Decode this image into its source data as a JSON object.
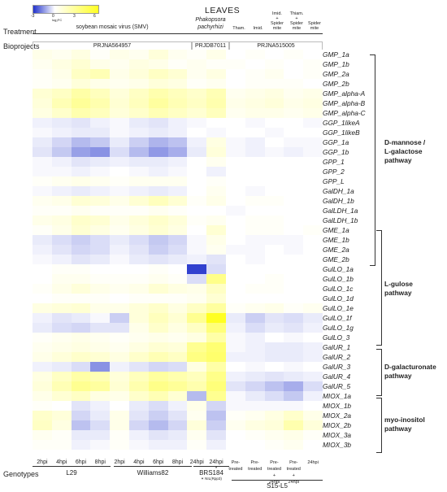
{
  "title": "LEAVES",
  "colorbar": {
    "ticks": [
      "-3",
      "0",
      "3",
      "6"
    ],
    "unit": "log₂FC",
    "colors": {
      "low": "#2233cc",
      "mid": "#ffffff",
      "high": "#ffff22"
    }
  },
  "labels": {
    "treatment": "Treatment",
    "bioprojects": "Bioprojects",
    "genotypes": "Genotypes"
  },
  "treatments": {
    "smv": "soybean mosaic virus (SMV)",
    "pak_line1": "Phakopsora",
    "pak_line2": "pachyrhizi",
    "tham": "Tham.",
    "imid": "Imid.",
    "imid_sm": [
      "Imid.",
      "+",
      "Spider",
      "mite"
    ],
    "tham_sm": [
      "Thiam.",
      "+",
      "Spider",
      "mite"
    ],
    "sm": [
      "Spider",
      "mite"
    ]
  },
  "bioprojects": [
    "PRJNA564957",
    "PRJDB7011",
    "PRJNA515005"
  ],
  "genes": [
    "GMP_1a",
    "GMP_1b",
    "GMP_2a",
    "GMP_2b",
    "GMP_alpha-A",
    "GMP_alpha-B",
    "GMP_alpha-C",
    "GGP_1likeA",
    "GGP_1likeB",
    "GGP_1a",
    "GGP_1b",
    "GPP_1",
    "GPP_2",
    "GPP_L",
    "GalDH_1a",
    "GalDH_1b",
    "GalLDH_1a",
    "GalLDH_1b",
    "GME_1a",
    "GME_1b",
    "GME_2a",
    "GME_2b",
    "GulLO_1a",
    "GulLO_1b",
    "GulLO_1c",
    "GulLO_1d",
    "GulLO_1e",
    "GulLO_1f",
    "GulLO_1g",
    "GulLO_3",
    "GalUR_1",
    "GalUR_2",
    "GalUR_3",
    "GalUR_4",
    "GalUR_5",
    "MIOX_1a",
    "MIOX_1b",
    "MIOX_2a",
    "MIOX_2b",
    "MIOX_3a",
    "MIOX_3b"
  ],
  "pathways": [
    {
      "lines": [
        "D-mannose /",
        "L-galactose",
        "pathway"
      ]
    },
    {
      "lines": [
        "L-gulose",
        "pathway"
      ]
    },
    {
      "lines": [
        "D-galacturonate",
        "pathway"
      ]
    },
    {
      "lines": [
        "myo-inositol",
        "pathway"
      ]
    }
  ],
  "timepoints": [
    [
      "2hpi"
    ],
    [
      "4hpi"
    ],
    [
      "6hpi"
    ],
    [
      "8hpi"
    ],
    [
      "2hpi"
    ],
    [
      "4hpi"
    ],
    [
      "6hpi"
    ],
    [
      "8hpi"
    ],
    [
      "24hpi"
    ],
    [
      "24hpi",
      "*"
    ],
    [
      "Pre-",
      "treated"
    ],
    [
      "Pre-",
      "treated"
    ],
    [
      "Pre-",
      "treated",
      "+",
      "24hpi"
    ],
    [
      "Pre-",
      "treated",
      "+",
      "24hpi"
    ],
    [
      "24hpi"
    ]
  ],
  "genotypes": {
    "l29": "L29",
    "williams": "Williams82",
    "brs": "BRS184",
    "brs_note": "✶ NIL(Rpp3)",
    "s15": "S15-L5"
  },
  "heatmap_values": [
    [
      0.3,
      0.2,
      0.4,
      0.1,
      0.3,
      0.2,
      0.5,
      0.2,
      0.1,
      0.3,
      0.0,
      0.1,
      0.0,
      0.1,
      0.0
    ],
    [
      0.2,
      0.4,
      0.6,
      0.3,
      0.2,
      0.4,
      0.3,
      0.1,
      0.2,
      0.1,
      0.1,
      0.0,
      0.1,
      0.0,
      0.1
    ],
    [
      0.1,
      0.3,
      0.8,
      1.0,
      0.3,
      0.5,
      0.8,
      0.6,
      0.2,
      0.4,
      0.0,
      0.1,
      0.2,
      0.0,
      0.1
    ],
    [
      0.1,
      0.2,
      0.5,
      0.3,
      0.2,
      0.3,
      0.5,
      0.4,
      0.1,
      0.2,
      0.0,
      0.1,
      0.1,
      0.1,
      0.0
    ],
    [
      0.6,
      0.8,
      1.2,
      0.9,
      0.5,
      0.8,
      1.1,
      0.9,
      0.7,
      1.0,
      0.2,
      0.3,
      0.4,
      0.2,
      0.3
    ],
    [
      0.5,
      1.0,
      1.4,
      1.1,
      0.6,
      0.9,
      1.3,
      1.0,
      0.8,
      1.1,
      0.3,
      0.4,
      0.5,
      0.3,
      0.4
    ],
    [
      0.4,
      0.7,
      1.1,
      0.9,
      0.5,
      0.7,
      1.0,
      0.8,
      0.6,
      0.9,
      0.2,
      0.3,
      0.3,
      0.2,
      0.3
    ],
    [
      -0.2,
      -0.3,
      -0.4,
      -0.2,
      -0.1,
      -0.3,
      -0.4,
      -0.2,
      -0.1,
      0.0,
      0.0,
      -0.1,
      0.0,
      0.0,
      -0.1
    ],
    [
      -0.1,
      -0.2,
      -0.3,
      -0.3,
      -0.1,
      -0.2,
      -0.3,
      -0.2,
      0.0,
      -0.1,
      0.0,
      0.0,
      -0.1,
      0.0,
      0.0
    ],
    [
      -0.3,
      -0.6,
      -1.0,
      -0.8,
      -0.3,
      -0.7,
      -1.1,
      -0.9,
      -0.2,
      0.4,
      -0.1,
      -0.2,
      0.0,
      -0.1,
      -0.1
    ],
    [
      -0.4,
      -0.8,
      -1.4,
      -1.6,
      -0.5,
      -1.0,
      -1.5,
      -1.2,
      -0.3,
      0.5,
      -0.1,
      -0.2,
      -0.1,
      -0.2,
      -0.1
    ],
    [
      -0.1,
      -0.2,
      -0.4,
      -0.3,
      -0.2,
      -0.3,
      -0.3,
      -0.2,
      0.0,
      0.2,
      0.0,
      0.0,
      0.0,
      0.0,
      0.0
    ],
    [
      -0.1,
      -0.1,
      -0.2,
      -0.1,
      0.0,
      -0.1,
      -0.2,
      -0.1,
      0.0,
      -0.2,
      0.0,
      0.0,
      0.0,
      0.0,
      0.0
    ],
    [
      0.1,
      0.2,
      0.3,
      0.2,
      0.1,
      0.2,
      0.2,
      0.2,
      0.0,
      0.1,
      0.0,
      0.0,
      0.0,
      0.0,
      0.0
    ],
    [
      -0.1,
      -0.2,
      -0.3,
      -0.2,
      -0.1,
      -0.2,
      -0.3,
      -0.2,
      0.0,
      0.2,
      0.0,
      -0.1,
      0.0,
      0.0,
      0.0
    ],
    [
      0.2,
      0.3,
      0.6,
      0.5,
      0.3,
      0.6,
      0.9,
      0.6,
      0.1,
      0.3,
      0.0,
      0.1,
      0.1,
      0.0,
      0.0
    ],
    [
      0.1,
      0.1,
      0.2,
      0.1,
      0.1,
      0.1,
      0.2,
      0.1,
      0.0,
      0.0,
      -0.1,
      0.0,
      0.0,
      0.0,
      0.0
    ],
    [
      0.3,
      0.4,
      0.7,
      0.6,
      0.3,
      0.5,
      0.7,
      0.5,
      0.1,
      0.2,
      0.0,
      0.1,
      0.1,
      0.0,
      0.0
    ],
    [
      0.1,
      0.3,
      0.6,
      0.4,
      0.2,
      0.4,
      0.6,
      0.4,
      0.0,
      0.6,
      0.0,
      0.1,
      0.1,
      0.0,
      0.1
    ],
    [
      -0.3,
      -0.5,
      -0.7,
      -0.5,
      -0.3,
      -0.5,
      -0.8,
      -0.6,
      -0.1,
      0.3,
      0.0,
      -0.1,
      -0.1,
      -0.1,
      0.0
    ],
    [
      -0.2,
      -0.4,
      -0.6,
      -0.5,
      -0.2,
      -0.4,
      -0.7,
      -0.5,
      -0.1,
      0.2,
      -0.1,
      -0.1,
      0.0,
      -0.1,
      0.0
    ],
    [
      -0.1,
      -0.2,
      -0.4,
      -0.3,
      -0.1,
      -0.3,
      -0.4,
      -0.3,
      -0.2,
      -0.4,
      0.0,
      -0.1,
      0.0,
      0.0,
      0.0
    ],
    [
      0.0,
      0.1,
      0.1,
      0.0,
      0.0,
      0.0,
      0.1,
      0.0,
      -2.8,
      -0.5,
      0.0,
      0.0,
      0.0,
      0.0,
      0.0
    ],
    [
      0.0,
      0.2,
      0.2,
      0.1,
      0.1,
      0.1,
      0.2,
      0.1,
      -0.5,
      1.6,
      0.0,
      0.0,
      0.1,
      0.0,
      0.0
    ],
    [
      0.1,
      0.3,
      0.5,
      0.3,
      0.2,
      0.3,
      0.6,
      0.4,
      0.3,
      0.8,
      0.0,
      0.1,
      0.1,
      0.0,
      0.0
    ],
    [
      0.0,
      0.1,
      0.1,
      0.1,
      0.0,
      0.1,
      0.1,
      0.1,
      0.2,
      0.6,
      0.0,
      0.0,
      0.0,
      0.0,
      0.0
    ],
    [
      0.4,
      0.5,
      0.6,
      0.3,
      0.3,
      0.5,
      0.7,
      0.4,
      0.8,
      1.3,
      0.1,
      0.2,
      0.3,
      0.1,
      0.2
    ],
    [
      -0.2,
      -0.4,
      -0.3,
      -0.1,
      -0.7,
      0.5,
      0.9,
      0.6,
      1.5,
      3.0,
      -0.3,
      -0.7,
      -0.4,
      -0.5,
      -0.3
    ],
    [
      -0.3,
      -0.5,
      -0.6,
      -0.4,
      -0.4,
      0.3,
      0.7,
      0.4,
      0.8,
      1.8,
      -0.2,
      -0.5,
      -0.3,
      -0.4,
      -0.2
    ],
    [
      0.1,
      0.2,
      0.3,
      0.2,
      0.1,
      0.2,
      0.3,
      0.2,
      0.4,
      1.2,
      -0.1,
      -0.2,
      0.0,
      -0.1,
      0.0
    ],
    [
      0.2,
      0.3,
      0.4,
      0.3,
      0.2,
      0.4,
      0.6,
      0.5,
      1.5,
      1.9,
      -0.1,
      -0.2,
      -0.3,
      -0.3,
      -0.2
    ],
    [
      0.3,
      0.5,
      0.7,
      0.6,
      0.4,
      0.7,
      1.0,
      0.8,
      1.7,
      2.0,
      -0.2,
      -0.2,
      -0.3,
      -0.3,
      -0.2
    ],
    [
      -0.2,
      -0.3,
      -0.5,
      -1.6,
      -0.2,
      -0.4,
      -0.6,
      -0.5,
      0.4,
      1.2,
      0.0,
      -0.1,
      0.0,
      -0.1,
      0.0
    ],
    [
      0.4,
      0.8,
      1.2,
      1.0,
      0.5,
      0.9,
      1.3,
      1.1,
      0.9,
      1.6,
      -0.2,
      -0.3,
      -0.4,
      -0.3,
      -0.2
    ],
    [
      0.5,
      1.0,
      1.5,
      1.3,
      0.6,
      1.1,
      1.6,
      1.4,
      1.1,
      1.8,
      -0.4,
      -0.6,
      -0.9,
      -1.2,
      -0.5
    ],
    [
      0.3,
      0.6,
      0.8,
      0.4,
      0.3,
      0.7,
      1.0,
      0.6,
      -1.0,
      1.5,
      -0.1,
      -0.3,
      -0.5,
      -0.8,
      -0.2
    ],
    [
      0.1,
      0.0,
      -0.4,
      -0.2,
      0.0,
      -0.3,
      -0.5,
      -0.2,
      0.3,
      -0.6,
      -0.1,
      -0.1,
      -0.1,
      -0.1,
      0.0
    ],
    [
      0.7,
      0.5,
      -0.6,
      -0.3,
      0.3,
      -0.4,
      -0.7,
      -0.4,
      0.2,
      -0.9,
      0.1,
      0.2,
      0.4,
      0.7,
      0.3
    ],
    [
      0.8,
      0.4,
      -0.9,
      -0.5,
      0.3,
      -0.6,
      -1.0,
      -0.6,
      0.5,
      -0.7,
      0.2,
      0.4,
      0.5,
      1.1,
      0.5
    ],
    [
      0.2,
      0.1,
      -0.3,
      -0.3,
      0.1,
      -0.2,
      -0.4,
      -0.3,
      0.2,
      -0.4,
      0.0,
      0.1,
      0.2,
      0.3,
      0.1
    ],
    [
      0.1,
      0.1,
      -0.2,
      -0.1,
      0.1,
      -0.1,
      -0.2,
      -0.2,
      0.1,
      -0.2,
      0.0,
      0.0,
      0.1,
      0.2,
      0.0
    ]
  ]
}
